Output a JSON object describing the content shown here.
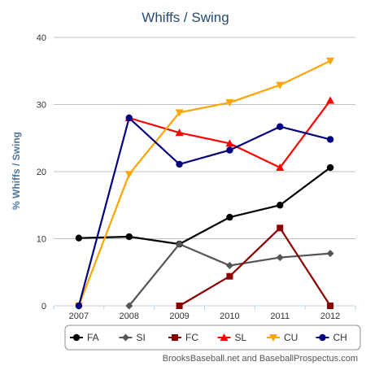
{
  "chart_data": {
    "type": "line",
    "title": "Whiffs  / Swing",
    "ylabel": "% Whiffs / Swing",
    "xlabel": "",
    "categories": [
      "2007",
      "2008",
      "2009",
      "2010",
      "2011",
      "2012"
    ],
    "yticks": [
      "0",
      "10",
      "20",
      "30",
      "40"
    ],
    "ylim": [
      0,
      40
    ],
    "grid": "horizontal",
    "legend_position": "bottom",
    "series": [
      {
        "name": "FA",
        "color": "#000000",
        "marker": "circle",
        "values": [
          10.1,
          10.3,
          9.2,
          13.2,
          15.0,
          20.6
        ]
      },
      {
        "name": "SI",
        "color": "#555555",
        "marker": "diamond",
        "values": [
          null,
          0.0,
          9.2,
          6.0,
          7.2,
          7.8
        ]
      },
      {
        "name": "FC",
        "color": "#8b0000",
        "marker": "square",
        "values": [
          null,
          null,
          0.0,
          4.4,
          11.6,
          0.0
        ]
      },
      {
        "name": "SL",
        "color": "#ff0000",
        "marker": "triangle-up",
        "values": [
          null,
          28.0,
          25.8,
          24.2,
          20.6,
          30.6
        ]
      },
      {
        "name": "CU",
        "color": "#ffa500",
        "marker": "triangle-down",
        "values": [
          0.0,
          19.6,
          28.8,
          30.3,
          32.9,
          36.5
        ]
      },
      {
        "name": "CH",
        "color": "#000080",
        "marker": "circle",
        "values": [
          0.0,
          28.0,
          21.1,
          23.2,
          26.7,
          24.8
        ]
      }
    ],
    "credit": "BrooksBaseball.net and BaseballProspectus.com"
  }
}
